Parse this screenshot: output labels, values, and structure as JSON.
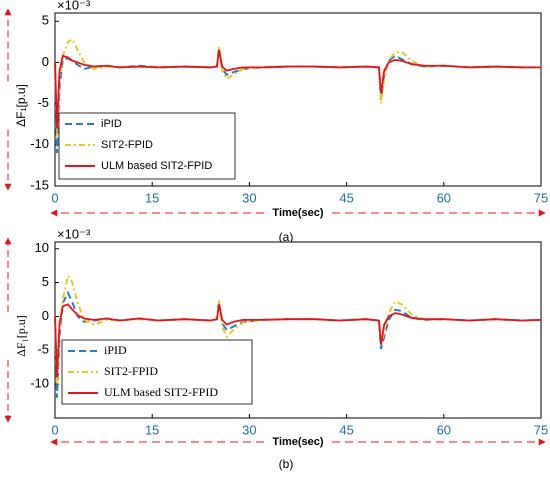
{
  "chart_data": [
    {
      "type": "line",
      "caption": "(a)",
      "xlabel": "Time(sec)",
      "ylabel": "ΔF₁[p.u]",
      "multiplier": "×10⁻³",
      "xlim": [
        0,
        75
      ],
      "xticks": [
        0,
        15,
        30,
        45,
        60,
        75
      ],
      "ylim": [
        -15,
        6
      ],
      "yticks": [
        5,
        0,
        -5,
        -10,
        -15
      ],
      "legend": "lower left",
      "x": [
        0,
        0.3,
        0.7,
        1.2,
        2,
        2.7,
        3.5,
        4.5,
        6,
        8,
        10,
        13,
        16,
        20,
        24,
        25,
        25.3,
        25.8,
        26.5,
        27.5,
        29,
        32,
        36,
        40,
        44,
        48,
        50,
        50.3,
        50.8,
        51.5,
        52.5,
        53.5,
        55,
        57,
        60,
        64,
        68,
        72,
        75
      ],
      "series": [
        {
          "name": "iPID",
          "color": "#2b7bbf",
          "dash": "7,4",
          "values": [
            0,
            -11,
            -3,
            0.3,
            0.5,
            0.2,
            -0.3,
            -0.8,
            -0.5,
            -0.4,
            -0.6,
            -0.4,
            -0.6,
            -0.5,
            -0.6,
            -0.5,
            1.8,
            -0.8,
            -1.5,
            -1.2,
            -0.8,
            -0.6,
            -0.5,
            -0.5,
            -0.6,
            -0.5,
            -0.6,
            -4.5,
            -1.5,
            0.2,
            0.8,
            0.4,
            -0.2,
            -0.5,
            -0.4,
            -0.6,
            -0.5,
            -0.6,
            -0.6
          ]
        },
        {
          "name": "SIT2-FPID",
          "color": "#e8c81c",
          "dash": "6,3,2,3",
          "values": [
            0,
            -9,
            -2,
            0.8,
            2.5,
            2.8,
            1.5,
            0,
            -0.8,
            -0.5,
            -0.6,
            -0.5,
            -0.6,
            -0.5,
            -0.6,
            -0.5,
            2,
            -1,
            -2,
            -1.5,
            -0.8,
            -0.6,
            -0.5,
            -0.5,
            -0.6,
            -0.5,
            -0.6,
            -5,
            -2,
            0.3,
            1.2,
            1.3,
            0.2,
            -0.5,
            -0.4,
            -0.6,
            -0.5,
            -0.6,
            -0.6
          ]
        },
        {
          "name": "ULM based SIT2-FPID",
          "color": "#e5141c",
          "dash": "none",
          "values": [
            0,
            -8,
            -1,
            0.8,
            0.6,
            0.2,
            0,
            -0.3,
            -0.5,
            -0.4,
            -0.6,
            -0.5,
            -0.6,
            -0.5,
            -0.6,
            -0.5,
            1.5,
            -0.5,
            -1,
            -0.8,
            -0.6,
            -0.6,
            -0.5,
            -0.5,
            -0.6,
            -0.5,
            -0.6,
            -3.8,
            -1,
            0,
            0.3,
            0.2,
            -0.2,
            -0.4,
            -0.4,
            -0.6,
            -0.5,
            -0.6,
            -0.6
          ]
        }
      ]
    },
    {
      "type": "line",
      "caption": "(b)",
      "xlabel": "Time(sec)",
      "ylabel": "ΔF₁[p.u]",
      "multiplier": "×10⁻³",
      "xlim": [
        0,
        75
      ],
      "xticks": [
        0,
        15,
        30,
        45,
        60,
        75
      ],
      "ylim": [
        -15,
        11
      ],
      "yticks": [
        10,
        5,
        0,
        -5,
        -10
      ],
      "legend": "lower left",
      "x": [
        0,
        0.3,
        0.7,
        1.2,
        2,
        2.7,
        3.5,
        4.5,
        6,
        8,
        10,
        13,
        16,
        20,
        24,
        25,
        25.3,
        25.8,
        26.5,
        27.5,
        29,
        32,
        36,
        40,
        44,
        48,
        50,
        50.3,
        50.8,
        51.5,
        52.5,
        53.5,
        55,
        57,
        60,
        64,
        68,
        72,
        75
      ],
      "series": [
        {
          "name": "iPID",
          "color": "#2b7bbf",
          "dash": "7,4",
          "values": [
            0,
            -12,
            -3,
            2,
            3.5,
            2,
            0,
            -0.8,
            -0.6,
            -0.3,
            -0.6,
            -0.3,
            -0.6,
            -0.4,
            -0.6,
            -0.4,
            2.2,
            -1,
            -2,
            -1.5,
            -0.8,
            -0.5,
            -0.4,
            -0.4,
            -0.6,
            -0.4,
            -0.6,
            -4.8,
            -3,
            -0.5,
            1,
            0.8,
            -0.2,
            -0.5,
            -0.4,
            -0.6,
            -0.4,
            -0.6,
            -0.5
          ]
        },
        {
          "name": "SIT2-FPID",
          "color": "#e8c81c",
          "dash": "6,3,2,3",
          "values": [
            0,
            -10,
            -2,
            2.5,
            6,
            5,
            2,
            -0.5,
            -1.2,
            -0.5,
            -0.6,
            -0.4,
            -0.6,
            -0.4,
            -0.6,
            -0.4,
            2.4,
            -1.5,
            -3,
            -2,
            -0.9,
            -0.5,
            -0.4,
            -0.4,
            -0.6,
            -0.4,
            -0.6,
            -4,
            -2.5,
            0.5,
            2.2,
            1.8,
            0.3,
            -0.5,
            -0.4,
            -0.6,
            -0.4,
            -0.6,
            -0.5
          ]
        },
        {
          "name": "ULM based SIT2-FPID",
          "color": "#e5141c",
          "dash": "none",
          "values": [
            0,
            -9,
            -1,
            1.5,
            1.8,
            1,
            0.2,
            -0.3,
            -0.5,
            -0.3,
            -0.6,
            -0.3,
            -0.6,
            -0.4,
            -0.6,
            -0.4,
            1.8,
            -0.5,
            -1.2,
            -0.8,
            -0.5,
            -0.5,
            -0.4,
            -0.4,
            -0.6,
            -0.4,
            -0.6,
            -4.2,
            -1.2,
            0,
            0.5,
            0.3,
            -0.2,
            -0.4,
            -0.4,
            -0.6,
            -0.4,
            -0.6,
            -0.5
          ]
        }
      ]
    }
  ]
}
